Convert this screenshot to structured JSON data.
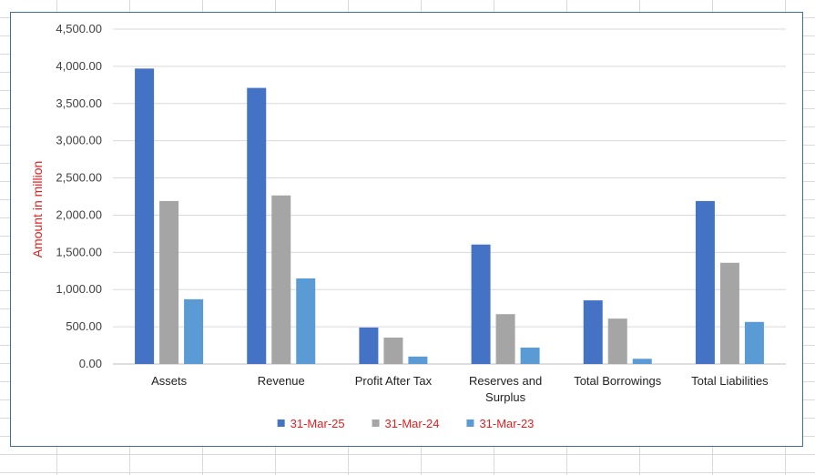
{
  "chart_data": {
    "type": "bar",
    "title": "",
    "xlabel": "",
    "ylabel": "Amount in million",
    "ylabel_color": "#e02020",
    "ylim": [
      0,
      4500
    ],
    "ytick_step": 500,
    "ytick_labels": [
      "0.00",
      "500.00",
      "1,000.00",
      "1,500.00",
      "2,000.00",
      "2,500.00",
      "3,000.00",
      "3,500.00",
      "4,000.00",
      "4,500.00"
    ],
    "grid": true,
    "legend_position": "bottom",
    "legend_text_color": "#e02020",
    "categories": [
      [
        "Assets"
      ],
      [
        "Revenue"
      ],
      [
        "Profit After Tax"
      ],
      [
        "Reserves and",
        "Surplus"
      ],
      [
        "Total Borrowings"
      ],
      [
        "Total Liabilities"
      ]
    ],
    "series": [
      {
        "name": "31-Mar-25",
        "color": "#4472c4",
        "values": [
          3970,
          3710,
          490,
          1605,
          855,
          2190
        ]
      },
      {
        "name": "31-Mar-24",
        "color": "#a5a5a5",
        "values": [
          2190,
          2265,
          355,
          670,
          610,
          1360
        ]
      },
      {
        "name": "31-Mar-23",
        "color": "#5b9bd5",
        "values": [
          870,
          1150,
          100,
          220,
          70,
          565
        ]
      }
    ]
  }
}
